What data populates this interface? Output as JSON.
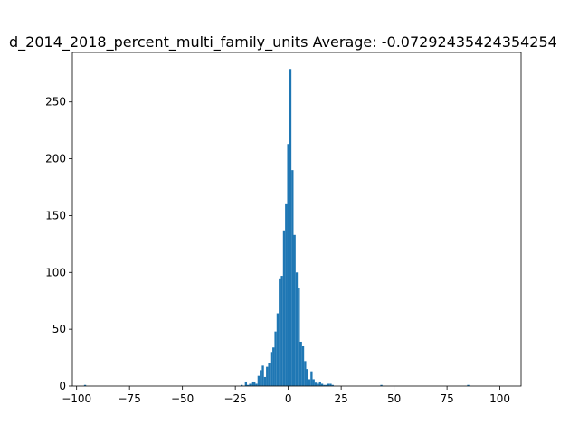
{
  "chart_data": {
    "type": "bar",
    "title": "d_2014_2018_percent_multi_family_units  Average: -0.07292435424354254",
    "xlabel": "",
    "ylabel": "",
    "xlim": [
      -102,
      110
    ],
    "ylim": [
      0,
      280
    ],
    "xticks": [
      -100,
      -75,
      -50,
      -25,
      0,
      25,
      50,
      75,
      100
    ],
    "yticks": [
      0,
      50,
      100,
      150,
      200,
      250
    ],
    "grid": false,
    "bar_color": "#1f77b4",
    "bin_width": 1,
    "bins": [
      {
        "x": -96,
        "value": 1
      },
      {
        "x": -22,
        "value": 1
      },
      {
        "x": -20,
        "value": 4
      },
      {
        "x": -19,
        "value": 1
      },
      {
        "x": -18,
        "value": 2
      },
      {
        "x": -17,
        "value": 4
      },
      {
        "x": -16,
        "value": 4
      },
      {
        "x": -15,
        "value": 2
      },
      {
        "x": -14,
        "value": 9
      },
      {
        "x": -13,
        "value": 14
      },
      {
        "x": -12,
        "value": 18
      },
      {
        "x": -11,
        "value": 8
      },
      {
        "x": -10,
        "value": 17
      },
      {
        "x": -9,
        "value": 20
      },
      {
        "x": -8,
        "value": 30
      },
      {
        "x": -7,
        "value": 34
      },
      {
        "x": -6,
        "value": 48
      },
      {
        "x": -5,
        "value": 64
      },
      {
        "x": -4,
        "value": 94
      },
      {
        "x": -3,
        "value": 97
      },
      {
        "x": -2,
        "value": 137
      },
      {
        "x": -1,
        "value": 160
      },
      {
        "x": 0,
        "value": 213
      },
      {
        "x": 1,
        "value": 279
      },
      {
        "x": 2,
        "value": 190
      },
      {
        "x": 3,
        "value": 133
      },
      {
        "x": 4,
        "value": 100
      },
      {
        "x": 5,
        "value": 86
      },
      {
        "x": 6,
        "value": 39
      },
      {
        "x": 7,
        "value": 35
      },
      {
        "x": 8,
        "value": 22
      },
      {
        "x": 9,
        "value": 15
      },
      {
        "x": 10,
        "value": 6
      },
      {
        "x": 11,
        "value": 13
      },
      {
        "x": 12,
        "value": 6
      },
      {
        "x": 13,
        "value": 3
      },
      {
        "x": 14,
        "value": 2
      },
      {
        "x": 15,
        "value": 4
      },
      {
        "x": 16,
        "value": 2
      },
      {
        "x": 17,
        "value": 1
      },
      {
        "x": 18,
        "value": 1
      },
      {
        "x": 19,
        "value": 2
      },
      {
        "x": 20,
        "value": 2
      },
      {
        "x": 21,
        "value": 1
      },
      {
        "x": 44,
        "value": 1
      },
      {
        "x": 85,
        "value": 1
      }
    ]
  }
}
